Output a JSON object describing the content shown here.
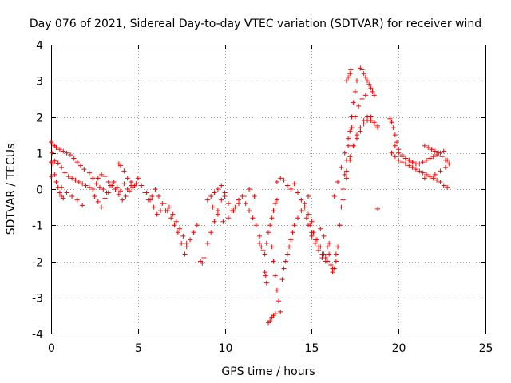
{
  "chart_data": {
    "type": "scatter",
    "title": "Day 076 of 2021, Sidereal Day-to-day VTEC variation (SDTVAR) for receiver wind",
    "xlabel": "GPS time / hours",
    "ylabel": "SDTVAR / TECUs",
    "xlim": [
      0,
      25
    ],
    "ylim": [
      -4,
      4
    ],
    "xticks": [
      "0",
      "5",
      "10",
      "15",
      "20",
      "25"
    ],
    "yticks": [
      "-4",
      "-3",
      "-2",
      "-1",
      "0",
      "1",
      "2",
      "3",
      "4"
    ],
    "grid": true,
    "marker": "+",
    "color": "#ff0000",
    "series": [
      {
        "name": "SDTVAR",
        "x": [
          0.0,
          0.1,
          0.2,
          0.3,
          0.5,
          0.7,
          0.9,
          1.1,
          1.3,
          1.5,
          1.7,
          1.9,
          0.0,
          0.2,
          0.4,
          0.6,
          0.8,
          1.0,
          1.2,
          1.4,
          1.6,
          1.8,
          2.0,
          2.2,
          2.4,
          0.0,
          0.3,
          0.6,
          0.9,
          1.2,
          1.5,
          1.8,
          0.0,
          0.05,
          0.1,
          0.2,
          0.3,
          0.4,
          0.5,
          0.6,
          0.7,
          2.2,
          2.4,
          2.6,
          2.8,
          3.0,
          3.2,
          3.4,
          3.6,
          3.8,
          4.0,
          4.2,
          4.4,
          4.6,
          4.8,
          2.5,
          2.7,
          2.9,
          3.1,
          3.3,
          3.5,
          3.7,
          3.9,
          4.1,
          4.3,
          4.5,
          4.7,
          4.9,
          2.7,
          2.9,
          3.1,
          3.3,
          3.5,
          3.9,
          4.0,
          4.2,
          4.4,
          4.6,
          5.0,
          5.2,
          5.4,
          5.6,
          5.8,
          6.0,
          6.2,
          6.4,
          6.6,
          6.8,
          7.0,
          7.2,
          7.4,
          7.6,
          7.8,
          5.5,
          5.7,
          5.9,
          6.1,
          6.3,
          6.5,
          6.7,
          6.9,
          7.1,
          7.3,
          7.5,
          7.7,
          7.8,
          8.0,
          8.2,
          8.4,
          8.6,
          8.7,
          8.8,
          9.0,
          9.2,
          9.4,
          9.6,
          9.8,
          10.0,
          9.2,
          9.4,
          9.6,
          9.8,
          10.0,
          10.2,
          10.4,
          10.6,
          10.8,
          11.0,
          11.2,
          11.4,
          11.6,
          11.8,
          12.0,
          9.0,
          9.3,
          9.6,
          9.9,
          10.2,
          10.5,
          10.8,
          11.1,
          11.4,
          11.7,
          12.0,
          12.1,
          12.2,
          12.3,
          12.4,
          12.5,
          12.6,
          12.7,
          12.8,
          12.9,
          13.0,
          12.3,
          12.35,
          12.4,
          12.5,
          12.6,
          12.7,
          12.8,
          12.9,
          12.7,
          12.8,
          12.9,
          13.0,
          13.1,
          13.2,
          13.3,
          13.4,
          13.5,
          13.6,
          13.7,
          13.8,
          13.9,
          14.0,
          14.2,
          14.4,
          14.6,
          14.8,
          13.0,
          13.2,
          13.4,
          13.6,
          13.8,
          14.0,
          14.2,
          14.4,
          14.6,
          14.8,
          15.0,
          14.5,
          14.7,
          14.9,
          15.1,
          15.3,
          15.5,
          15.7,
          15.9,
          16.1,
          16.2,
          14.8,
          15.0,
          15.2,
          15.4,
          15.6,
          15.8,
          16.0,
          15.0,
          15.2,
          15.4,
          15.6,
          15.8,
          16.0,
          15.5,
          15.7,
          15.9,
          16.2,
          16.3,
          16.4,
          16.5,
          16.6,
          16.7,
          16.8,
          16.9,
          17.0,
          17.1,
          17.2,
          17.3,
          17.4,
          17.5,
          17.6,
          16.4,
          16.6,
          16.8,
          17.0,
          17.2,
          17.4,
          17.6,
          17.8,
          18.0,
          18.2,
          18.4,
          18.6,
          18.8,
          17.0,
          17.2,
          17.4,
          17.6,
          17.8,
          18.0,
          18.2,
          18.4,
          18.6,
          18.8,
          16.3,
          16.5,
          16.7,
          16.9,
          17.1,
          17.3,
          17.5,
          17.7,
          17.9,
          18.1,
          17.8,
          17.9,
          18.0,
          18.1,
          18.2,
          18.3,
          18.4,
          18.5,
          18.6,
          17.0,
          17.1,
          17.2,
          17.25,
          18.8,
          19.5,
          19.6,
          19.7,
          19.8,
          19.9,
          20.0,
          20.2,
          20.4,
          20.6,
          20.8,
          21.0,
          21.2,
          21.4,
          21.6,
          21.8,
          22.0,
          22.2,
          22.4,
          22.6,
          22.8,
          19.6,
          19.8,
          20.0,
          20.2,
          20.4,
          20.6,
          20.8,
          21.0,
          21.2,
          21.4,
          21.6,
          21.8,
          22.0,
          22.2,
          22.4,
          22.6,
          22.8,
          19.8,
          20.0,
          20.2,
          20.4,
          20.6,
          20.8,
          21.0,
          21.5,
          21.7,
          21.9,
          22.1,
          22.3,
          22.5,
          22.7,
          22.9,
          21.5,
          21.8,
          22.1,
          22.4,
          22.7
        ],
        "y": [
          1.3,
          1.25,
          1.2,
          1.15,
          1.1,
          1.05,
          1.0,
          0.95,
          0.85,
          0.75,
          0.65,
          0.55,
          0.75,
          0.78,
          0.72,
          0.6,
          0.45,
          0.35,
          0.3,
          0.25,
          0.2,
          0.15,
          0.1,
          0.05,
          0.0,
          0.35,
          0.2,
          0.05,
          -0.1,
          -0.2,
          -0.3,
          -0.45,
          1.3,
          1.0,
          0.7,
          0.4,
          0.2,
          0.05,
          -0.1,
          -0.2,
          -0.25,
          0.45,
          0.3,
          0.15,
          0.05,
          0.0,
          -0.1,
          0.1,
          0.2,
          0.05,
          -0.05,
          0.15,
          0.0,
          0.2,
          0.1,
          -0.2,
          -0.35,
          -0.5,
          -0.25,
          -0.1,
          0.1,
          0.0,
          -0.15,
          -0.3,
          -0.2,
          -0.05,
          0.05,
          0.15,
          0.3,
          0.4,
          0.35,
          0.2,
          0.1,
          0.7,
          0.65,
          0.5,
          0.3,
          0.1,
          0.3,
          0.1,
          -0.1,
          -0.3,
          -0.2,
          0.0,
          -0.2,
          -0.4,
          -0.6,
          -0.5,
          -0.7,
          -0.9,
          -1.1,
          -1.3,
          -1.5,
          -0.1,
          -0.3,
          -0.5,
          -0.7,
          -0.6,
          -0.4,
          -0.6,
          -0.8,
          -1.0,
          -1.2,
          -1.5,
          -1.8,
          -1.6,
          -1.4,
          -1.2,
          -1.0,
          -2.0,
          -2.05,
          -1.9,
          -1.5,
          -1.2,
          -0.9,
          -0.6,
          -0.3,
          -0.1,
          -0.2,
          -0.1,
          0.0,
          0.1,
          -0.2,
          -0.4,
          -0.6,
          -0.5,
          -0.3,
          -0.2,
          -0.4,
          -0.6,
          -0.8,
          -1.0,
          -1.3,
          -0.3,
          -0.5,
          -0.7,
          -0.9,
          -0.8,
          -0.6,
          -0.4,
          -0.2,
          0.0,
          -0.2,
          -1.5,
          -1.6,
          -1.7,
          -1.8,
          -1.5,
          -1.2,
          -1.0,
          -0.8,
          -0.6,
          -0.4,
          -0.3,
          -2.3,
          -2.4,
          -2.6,
          -3.7,
          -3.65,
          -3.55,
          -3.5,
          -3.45,
          -1.6,
          -2.0,
          -2.4,
          -2.8,
          -3.1,
          -3.4,
          -2.5,
          -2.2,
          -2.0,
          -1.8,
          -1.6,
          -1.4,
          -1.2,
          -1.0,
          -0.8,
          -0.6,
          -0.4,
          -0.2,
          0.2,
          0.3,
          0.25,
          0.1,
          0.0,
          0.15,
          -0.1,
          -0.3,
          -0.5,
          -0.7,
          -0.9,
          -0.6,
          -0.8,
          -1.0,
          -1.2,
          -1.4,
          -1.6,
          -1.8,
          -2.0,
          -2.1,
          -2.2,
          -1.0,
          -1.2,
          -1.4,
          -1.6,
          -1.8,
          -1.9,
          -1.5,
          -1.3,
          -1.5,
          -1.7,
          -1.9,
          -2.0,
          -1.8,
          -1.1,
          -1.3,
          -1.6,
          -2.3,
          -2.2,
          -2.0,
          -1.6,
          -1.0,
          -0.5,
          0.0,
          0.4,
          0.8,
          1.2,
          1.6,
          2.0,
          2.4,
          2.7,
          3.0,
          -1.8,
          -1.0,
          -0.3,
          0.3,
          0.8,
          1.2,
          1.5,
          1.7,
          1.9,
          2.0,
          1.9,
          1.8,
          1.7,
          0.5,
          0.9,
          1.2,
          1.4,
          1.6,
          1.8,
          1.9,
          2.0,
          1.85,
          1.75,
          -0.2,
          0.2,
          0.6,
          1.0,
          1.4,
          1.7,
          2.0,
          2.3,
          2.5,
          2.6,
          3.35,
          3.3,
          3.2,
          3.1,
          3.0,
          2.9,
          2.8,
          2.7,
          2.6,
          3.0,
          3.1,
          3.2,
          3.3,
          -0.55,
          1.95,
          1.85,
          1.7,
          1.5,
          1.3,
          1.1,
          0.95,
          0.85,
          0.8,
          0.75,
          0.7,
          0.7,
          0.75,
          0.8,
          0.85,
          0.9,
          0.95,
          1.0,
          1.05,
          0.8,
          1.0,
          0.9,
          0.8,
          0.75,
          0.7,
          0.65,
          0.6,
          0.55,
          0.5,
          0.45,
          0.4,
          0.35,
          0.3,
          0.25,
          0.2,
          0.1,
          0.05,
          1.2,
          1.0,
          0.9,
          0.85,
          0.8,
          0.75,
          0.7,
          1.2,
          1.15,
          1.1,
          1.05,
          1.0,
          0.9,
          0.8,
          0.7,
          0.3,
          0.35,
          0.4,
          0.5,
          0.6
        ]
      }
    ]
  }
}
